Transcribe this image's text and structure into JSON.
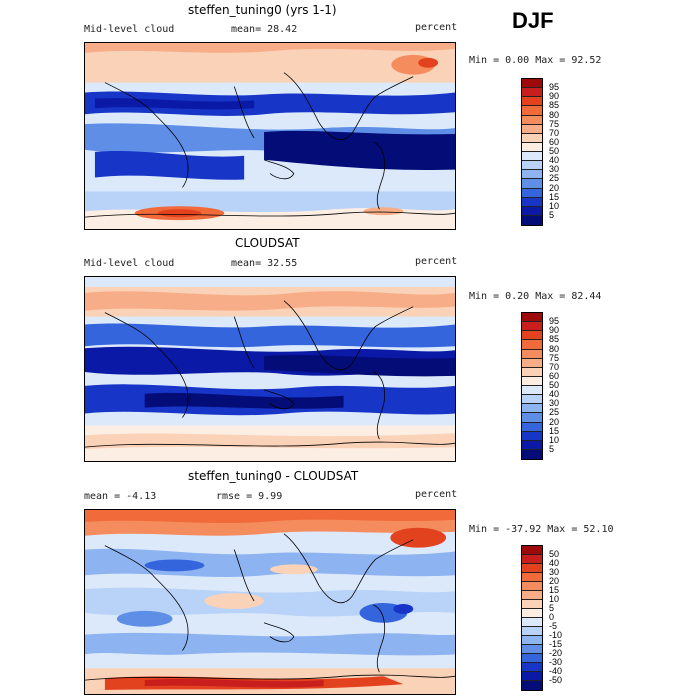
{
  "season": "DJF",
  "panels": [
    {
      "title": "steffen_tuning0 (yrs 1-1)",
      "left_label": "Mid-level cloud",
      "mean_label": "mean=  28.42",
      "units": "percent",
      "minmax": "Min =   0.00 Max =  92.52",
      "colorbar_labels": [
        "95",
        "90",
        "85",
        "80",
        "75",
        "70",
        "60",
        "50",
        "40",
        "30",
        "25",
        "20",
        "15",
        "10",
        "5"
      ],
      "colorbar_colors": [
        "#9e0a0a",
        "#c81e1e",
        "#e3421f",
        "#f06a3a",
        "#f58c5d",
        "#f7ad87",
        "#fad2b8",
        "#fdeee4",
        "#dbe9fb",
        "#b9d2f7",
        "#8db3f0",
        "#5f8ee6",
        "#3565dd",
        "#1736c8",
        "#0b1aa6",
        "#040c78"
      ]
    },
    {
      "title": "CLOUDSAT",
      "left_label": "Mid-level cloud",
      "mean_label": "mean=  32.55",
      "units": "percent",
      "minmax": "Min =   0.20 Max =  82.44",
      "colorbar_labels": [
        "95",
        "90",
        "85",
        "80",
        "75",
        "70",
        "60",
        "50",
        "40",
        "30",
        "25",
        "20",
        "15",
        "10",
        "5"
      ],
      "colorbar_colors": [
        "#9e0a0a",
        "#c81e1e",
        "#e3421f",
        "#f06a3a",
        "#f58c5d",
        "#f7ad87",
        "#fad2b8",
        "#fdeee4",
        "#dbe9fb",
        "#b9d2f7",
        "#8db3f0",
        "#5f8ee6",
        "#3565dd",
        "#1736c8",
        "#0b1aa6",
        "#040c78"
      ]
    },
    {
      "title": "steffen_tuning0 - CLOUDSAT",
      "left_label": "mean =   -4.13",
      "mean_label": "rmse =   9.99",
      "units": "percent",
      "minmax": "Min = -37.92 Max =  52.10",
      "colorbar_labels": [
        "50",
        "40",
        "30",
        "20",
        "15",
        "10",
        "5",
        "0",
        "-5",
        "-10",
        "-15",
        "-20",
        "-30",
        "-40",
        "-50"
      ],
      "colorbar_colors": [
        "#9e0a0a",
        "#c81e1e",
        "#e3421f",
        "#f06a3a",
        "#f58c5d",
        "#f7ad87",
        "#fad2b8",
        "#fdeee4",
        "#dbe9fb",
        "#b9d2f7",
        "#8db3f0",
        "#5f8ee6",
        "#3565dd",
        "#1736c8",
        "#0b1aa6",
        "#040c78"
      ]
    }
  ]
}
